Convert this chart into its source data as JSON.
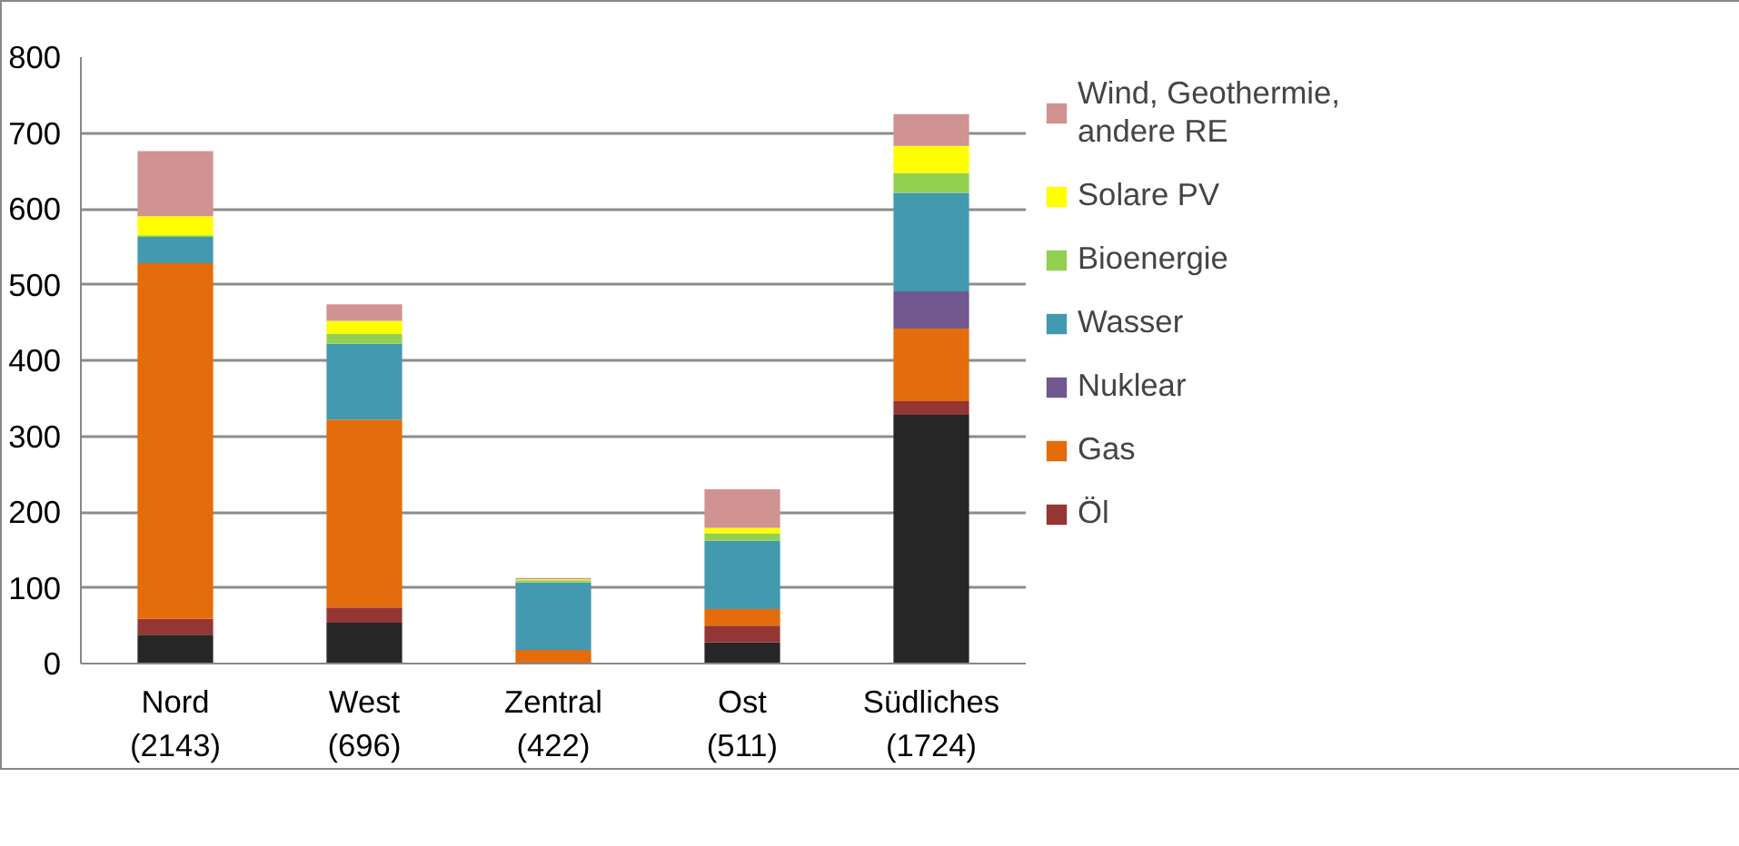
{
  "chart_data": {
    "type": "bar",
    "stacked": true,
    "categories": [
      "Nord (2143)",
      "West (696)",
      "Zentral (422)",
      "Ost (511)",
      "Südliches (1724)"
    ],
    "series": [
      {
        "color": "#262626",
        "values": [
          38,
          54,
          0,
          28,
          328
        ]
      },
      {
        "name": "Öl",
        "color": "#943634",
        "values": [
          21,
          20,
          0,
          22,
          18
        ]
      },
      {
        "name": "Gas",
        "color": "#e46c0a",
        "values": [
          469,
          248,
          18,
          22,
          96
        ]
      },
      {
        "name": "Nuklear",
        "color": "#71588f",
        "values": [
          0,
          0,
          0,
          0,
          49
        ]
      },
      {
        "name": "Wasser",
        "color": "#4299b0",
        "values": [
          35,
          100,
          89,
          90,
          130
        ]
      },
      {
        "name": "Bioenergie",
        "color": "#92d050",
        "values": [
          2,
          13,
          3,
          10,
          26
        ]
      },
      {
        "name": "Solare PV",
        "color": "#ffff00",
        "values": [
          25,
          17,
          1,
          7,
          36
        ]
      },
      {
        "name": "Wind, Geothermie, andere RE",
        "color": "#d19292",
        "values": [
          86,
          22,
          2,
          51,
          42
        ]
      }
    ],
    "ylim": [
      0,
      800
    ],
    "yticks": [
      0,
      100,
      200,
      300,
      400,
      500,
      600,
      700,
      800
    ],
    "grid": "y",
    "legend": "right"
  }
}
